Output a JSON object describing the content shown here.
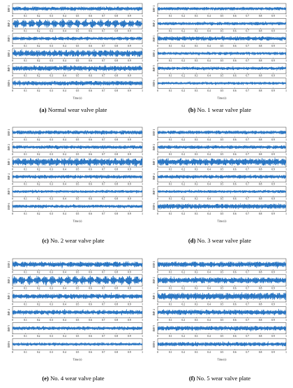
{
  "chart_data": [
    {
      "type": "line",
      "panel_label": "(a)",
      "caption": "Normal wear valve plate",
      "xlabel": "Time (s)",
      "xlim": [
        0,
        1
      ],
      "xticks": [
        "0",
        "0.1",
        "0.2",
        "0.3",
        "0.4",
        "0.5",
        "0.6",
        "0.7",
        "0.8",
        "0.9",
        "1"
      ],
      "series": [
        {
          "name": "IMF 1",
          "amplitude": 0.45,
          "modulation": 0.35,
          "bursts": 0.2
        },
        {
          "name": "IMF 2",
          "amplitude": 0.9,
          "modulation": 0.85,
          "bursts": 0.1
        },
        {
          "name": "IMF 3",
          "amplitude": 0.4,
          "modulation": 0.4,
          "bursts": 0.35
        },
        {
          "name": "IMF 4",
          "amplitude": 0.75,
          "modulation": 0.5,
          "bursts": 0.3
        },
        {
          "name": "IMF 5",
          "amplitude": 0.55,
          "modulation": 0.3,
          "bursts": 0.7
        },
        {
          "name": "IMF 6",
          "amplitude": 0.5,
          "modulation": 0.3,
          "bursts": 0.8
        }
      ]
    },
    {
      "type": "line",
      "panel_label": "(b)",
      "caption": "No. 1 wear valve plate",
      "xlabel": "Time (s)",
      "xlim": [
        0,
        1
      ],
      "xticks": [
        "0",
        "0.1",
        "0.2",
        "0.3",
        "0.4",
        "0.5",
        "0.6",
        "0.7",
        "0.8",
        "0.9",
        "1"
      ],
      "series": [
        {
          "name": "IMF 1",
          "amplitude": 0.35,
          "modulation": 0.2,
          "bursts": 0.2
        },
        {
          "name": "IMF 2",
          "amplitude": 0.35,
          "modulation": 0.25,
          "bursts": 0.2
        },
        {
          "name": "IMF 3",
          "amplitude": 0.45,
          "modulation": 0.3,
          "bursts": 0.6
        },
        {
          "name": "IMF 4",
          "amplitude": 0.35,
          "modulation": 0.4,
          "bursts": 0.5
        },
        {
          "name": "IMF 5",
          "amplitude": 0.35,
          "modulation": 0.3,
          "bursts": 0.7
        },
        {
          "name": "IMF 6",
          "amplitude": 0.3,
          "modulation": 0.3,
          "bursts": 0.6
        }
      ]
    },
    {
      "type": "line",
      "panel_label": "(c)",
      "caption": "No. 2 wear valve plate",
      "xlabel": "Time (s)",
      "xlim": [
        0,
        1
      ],
      "xticks": [
        "0",
        "0.1",
        "0.2",
        "0.3",
        "0.4",
        "0.5",
        "0.6",
        "0.7",
        "0.8",
        "0.9",
        "1"
      ],
      "series": [
        {
          "name": "IMF 1",
          "amplitude": 0.45,
          "modulation": 0.3,
          "bursts": 0.3
        },
        {
          "name": "IMF 2",
          "amplitude": 0.4,
          "modulation": 0.3,
          "bursts": 0.3
        },
        {
          "name": "IMF 3",
          "amplitude": 0.85,
          "modulation": 0.45,
          "bursts": 0.2
        },
        {
          "name": "IMF 4",
          "amplitude": 0.4,
          "modulation": 0.3,
          "bursts": 0.4
        },
        {
          "name": "IMF 5",
          "amplitude": 0.3,
          "modulation": 0.2,
          "bursts": 0.8
        },
        {
          "name": "IMF 6",
          "amplitude": 0.35,
          "modulation": 0.2,
          "bursts": 0.9
        }
      ]
    },
    {
      "type": "line",
      "panel_label": "(d)",
      "caption": "No. 3 wear valve plate",
      "xlabel": "Time (s)",
      "xlim": [
        0,
        1
      ],
      "xticks": [
        "0",
        "0.1",
        "0.2",
        "0.3",
        "0.4",
        "0.5",
        "0.6",
        "0.7",
        "0.8",
        "0.9",
        "1"
      ],
      "series": [
        {
          "name": "IMF 1",
          "amplitude": 0.4,
          "modulation": 0.3,
          "bursts": 0.2
        },
        {
          "name": "IMF 2",
          "amplitude": 0.4,
          "modulation": 0.3,
          "bursts": 0.2
        },
        {
          "name": "IMF 3",
          "amplitude": 0.8,
          "modulation": 0.45,
          "bursts": 0.2
        },
        {
          "name": "IMF 4",
          "amplitude": 0.4,
          "modulation": 0.3,
          "bursts": 0.4
        },
        {
          "name": "IMF 5",
          "amplitude": 0.3,
          "modulation": 0.2,
          "bursts": 0.8
        },
        {
          "name": "IMF 6",
          "amplitude": 0.55,
          "modulation": 0.3,
          "bursts": 0.7
        }
      ]
    },
    {
      "type": "line",
      "panel_label": "(e)",
      "caption": "No. 4 wear valve plate",
      "xlabel": "Time (s)",
      "xlim": [
        0,
        1
      ],
      "xticks": [
        "0",
        "0.1",
        "0.2",
        "0.3",
        "0.4",
        "0.5",
        "0.6",
        "0.7",
        "0.8",
        "0.9",
        "1"
      ],
      "series": [
        {
          "name": "IMF 1",
          "amplitude": 0.55,
          "modulation": 0.45,
          "bursts": 0.2
        },
        {
          "name": "IMF 2",
          "amplitude": 0.9,
          "modulation": 0.8,
          "bursts": 0.1
        },
        {
          "name": "IMF 3",
          "amplitude": 0.5,
          "modulation": 0.4,
          "bursts": 0.3
        },
        {
          "name": "IMF 4",
          "amplitude": 0.45,
          "modulation": 0.4,
          "bursts": 0.3
        },
        {
          "name": "IMF 5",
          "amplitude": 0.35,
          "modulation": 0.3,
          "bursts": 0.7
        },
        {
          "name": "IMF 6",
          "amplitude": 0.3,
          "modulation": 0.3,
          "bursts": 0.8
        }
      ]
    },
    {
      "type": "line",
      "panel_label": "(f)",
      "caption": "No. 5 wear valve plate",
      "xlabel": "Time (s)",
      "xlim": [
        0,
        1
      ],
      "xticks": [
        "0",
        "0.1",
        "0.2",
        "0.3",
        "0.4",
        "0.5",
        "0.6",
        "0.7",
        "0.8",
        "0.9",
        "1"
      ],
      "series": [
        {
          "name": "IMF 1",
          "amplitude": 0.55,
          "modulation": 0.35,
          "bursts": 0.2
        },
        {
          "name": "IMF 2",
          "amplitude": 0.6,
          "modulation": 0.35,
          "bursts": 0.2
        },
        {
          "name": "IMF 3",
          "amplitude": 0.7,
          "modulation": 0.4,
          "bursts": 0.3
        },
        {
          "name": "IMF 4",
          "amplitude": 0.5,
          "modulation": 0.35,
          "bursts": 0.6
        },
        {
          "name": "IMF 5",
          "amplitude": 0.45,
          "modulation": 0.3,
          "bursts": 0.7
        },
        {
          "name": "IMF 6",
          "amplitude": 0.4,
          "modulation": 0.3,
          "bursts": 0.8
        }
      ]
    }
  ],
  "colors": {
    "signal": "#1f6fc0",
    "axis": "#333333",
    "text": "#000000"
  }
}
